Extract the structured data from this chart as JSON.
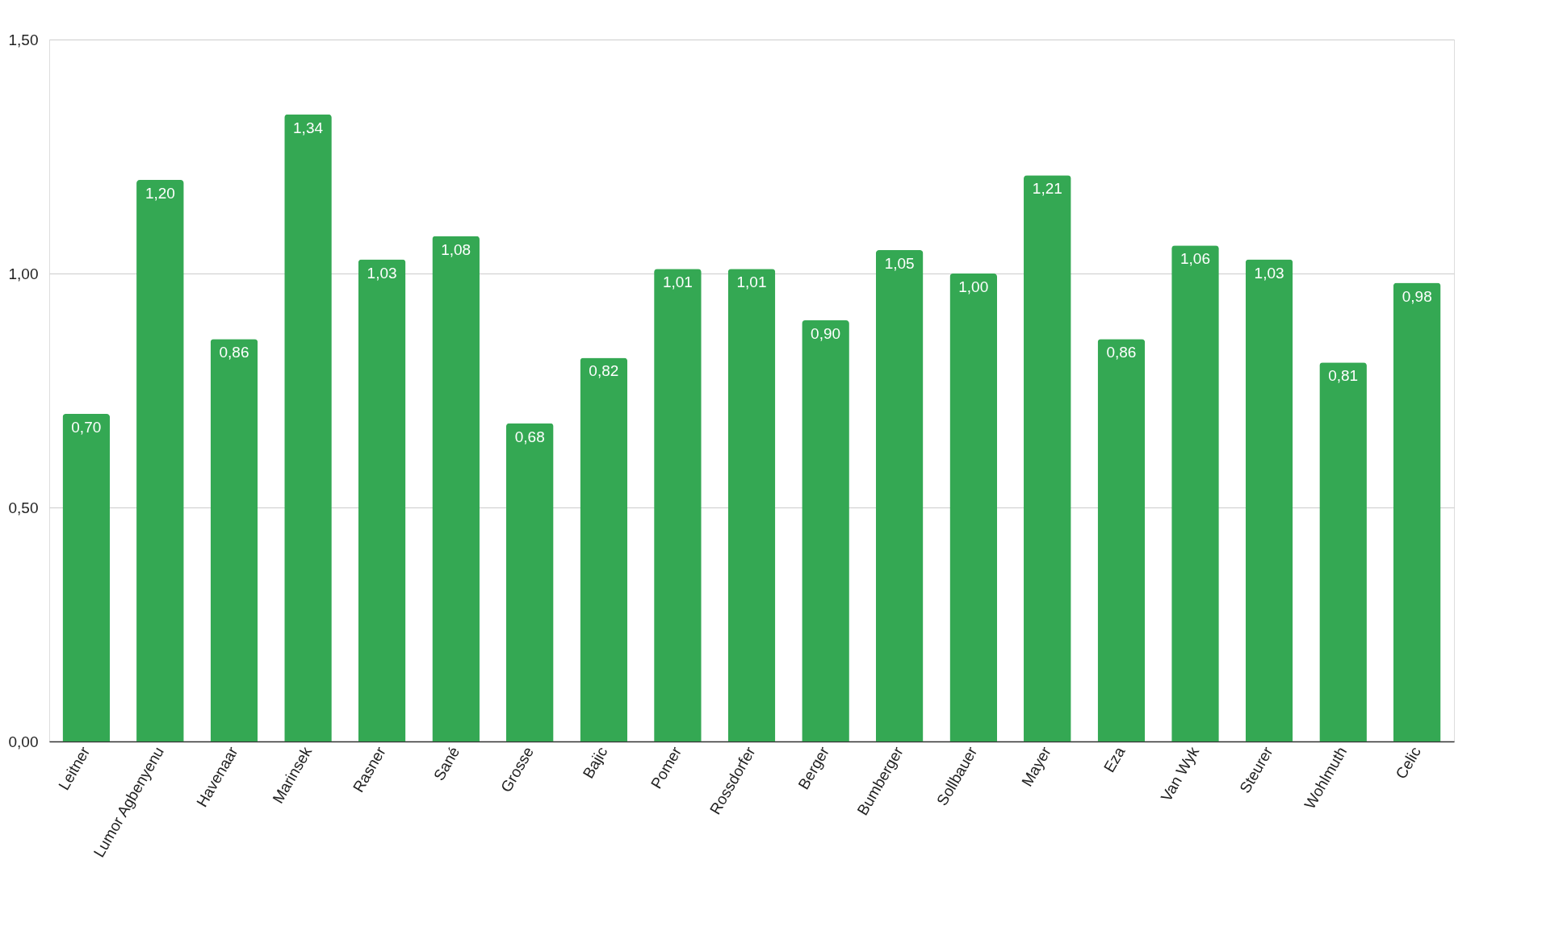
{
  "chart_data": {
    "type": "bar",
    "categories": [
      "Leitner",
      "Lumor Agbenyenu",
      "Havenaar",
      "Marinsek",
      "Rasner",
      "Sané",
      "Grosse",
      "Bajic",
      "Pomer",
      "Rossdorfer",
      "Berger",
      "Bumberger",
      "Sollbauer",
      "Mayer",
      "Eza",
      "Van Wyk",
      "Steurer",
      "Wohlmuth",
      "Celic"
    ],
    "values": [
      0.7,
      1.2,
      0.86,
      1.34,
      1.03,
      1.08,
      0.68,
      0.82,
      1.01,
      1.01,
      0.9,
      1.05,
      1.0,
      1.21,
      0.86,
      1.06,
      1.03,
      0.81,
      0.98
    ],
    "value_labels": [
      "0,70",
      "1,20",
      "0,86",
      "1,34",
      "1,03",
      "1,08",
      "0,68",
      "0,82",
      "1,01",
      "1,01",
      "0,90",
      "1,05",
      "1,00",
      "1,21",
      "0,86",
      "1,06",
      "1,03",
      "0,81",
      "0,98"
    ],
    "color": "#34a853",
    "ylim": [
      0,
      1.5
    ],
    "yticks": [
      {
        "value": 0,
        "label": "0,00"
      },
      {
        "value": 0.5,
        "label": "0,50"
      },
      {
        "value": 1.0,
        "label": "1,00"
      },
      {
        "value": 1.5,
        "label": "1,50"
      }
    ],
    "grid": "y"
  }
}
